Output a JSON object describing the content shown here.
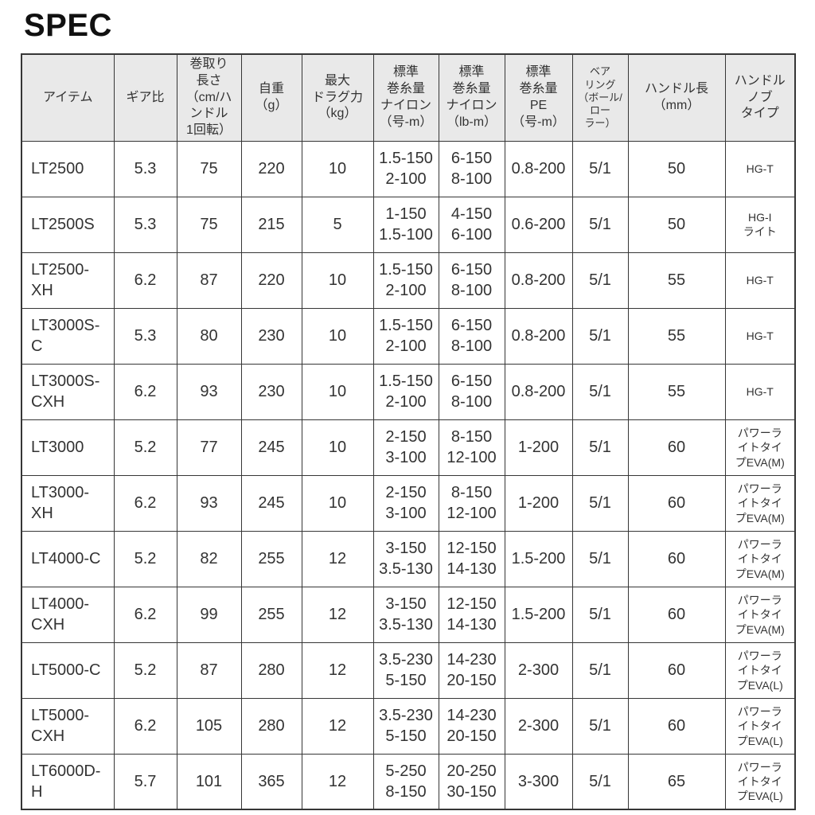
{
  "page_title": "SPEC",
  "colors": {
    "header_background": "#e9e9e9",
    "table_border": "#363636",
    "text": "#333333",
    "title_text": "#111111",
    "page_background": "#ffffff"
  },
  "table": {
    "columns": [
      {
        "label": "アイテム"
      },
      {
        "label": "ギア比"
      },
      {
        "label": "巻取り\n長さ\n（cm/ハ\nンドル\n1回転）"
      },
      {
        "label": "自重\n（g）"
      },
      {
        "label": "最大\nドラグ力\n（kg）"
      },
      {
        "label": "標準\n巻糸量\nナイロン\n（号-m）"
      },
      {
        "label": "標準\n巻糸量\nナイロン\n（lb-m）"
      },
      {
        "label": "標準\n巻糸量\nPE\n（号-m）"
      },
      {
        "label": "ベア\nリング\n（ボール/\nロー\nラー）"
      },
      {
        "label": "ハンドル長\n（mm）"
      },
      {
        "label": "ハンドル\nノブ\nタイプ"
      }
    ],
    "rows": [
      {
        "cells": [
          "LT2500",
          "5.3",
          "75",
          "220",
          "10",
          "1.5-150\n2-100",
          "6-150\n8-100",
          "0.8-200",
          "5/1",
          "50",
          "HG-T"
        ]
      },
      {
        "cells": [
          "LT2500S",
          "5.3",
          "75",
          "215",
          "5",
          "1-150\n1.5-100",
          "4-150\n6-100",
          "0.6-200",
          "5/1",
          "50",
          "HG-I\nライト"
        ]
      },
      {
        "cells": [
          "LT2500-XH",
          "6.2",
          "87",
          "220",
          "10",
          "1.5-150\n2-100",
          "6-150\n8-100",
          "0.8-200",
          "5/1",
          "55",
          "HG-T"
        ]
      },
      {
        "cells": [
          "LT3000S-C",
          "5.3",
          "80",
          "230",
          "10",
          "1.5-150\n2-100",
          "6-150\n8-100",
          "0.8-200",
          "5/1",
          "55",
          "HG-T"
        ]
      },
      {
        "cells": [
          "LT3000S-\nCXH",
          "6.2",
          "93",
          "230",
          "10",
          "1.5-150\n2-100",
          "6-150\n8-100",
          "0.8-200",
          "5/1",
          "55",
          "HG-T"
        ]
      },
      {
        "cells": [
          "LT3000",
          "5.2",
          "77",
          "245",
          "10",
          "2-150\n3-100",
          "8-150\n12-100",
          "1-200",
          "5/1",
          "60",
          "パワーラ\nイトタイ\nプEVA(M)"
        ]
      },
      {
        "cells": [
          "LT3000-XH",
          "6.2",
          "93",
          "245",
          "10",
          "2-150\n3-100",
          "8-150\n12-100",
          "1-200",
          "5/1",
          "60",
          "パワーラ\nイトタイ\nプEVA(M)"
        ]
      },
      {
        "cells": [
          "LT4000-C",
          "5.2",
          "82",
          "255",
          "12",
          "3-150\n3.5-130",
          "12-150\n14-130",
          "1.5-200",
          "5/1",
          "60",
          "パワーラ\nイトタイ\nプEVA(M)"
        ]
      },
      {
        "cells": [
          "LT4000-\nCXH",
          "6.2",
          "99",
          "255",
          "12",
          "3-150\n3.5-130",
          "12-150\n14-130",
          "1.5-200",
          "5/1",
          "60",
          "パワーラ\nイトタイ\nプEVA(M)"
        ]
      },
      {
        "cells": [
          "LT5000-C",
          "5.2",
          "87",
          "280",
          "12",
          "3.5-230\n5-150",
          "14-230\n20-150",
          "2-300",
          "5/1",
          "60",
          "パワーラ\nイトタイ\nプEVA(L)"
        ]
      },
      {
        "cells": [
          "LT5000-\nCXH",
          "6.2",
          "105",
          "280",
          "12",
          "3.5-230\n5-150",
          "14-230\n20-150",
          "2-300",
          "5/1",
          "60",
          "パワーラ\nイトタイ\nプEVA(L)"
        ]
      },
      {
        "cells": [
          "LT6000D-H",
          "5.7",
          "101",
          "365",
          "12",
          "5-250\n8-150",
          "20-250\n30-150",
          "3-300",
          "5/1",
          "65",
          "パワーラ\nイトタイ\nプEVA(L)"
        ]
      }
    ]
  }
}
